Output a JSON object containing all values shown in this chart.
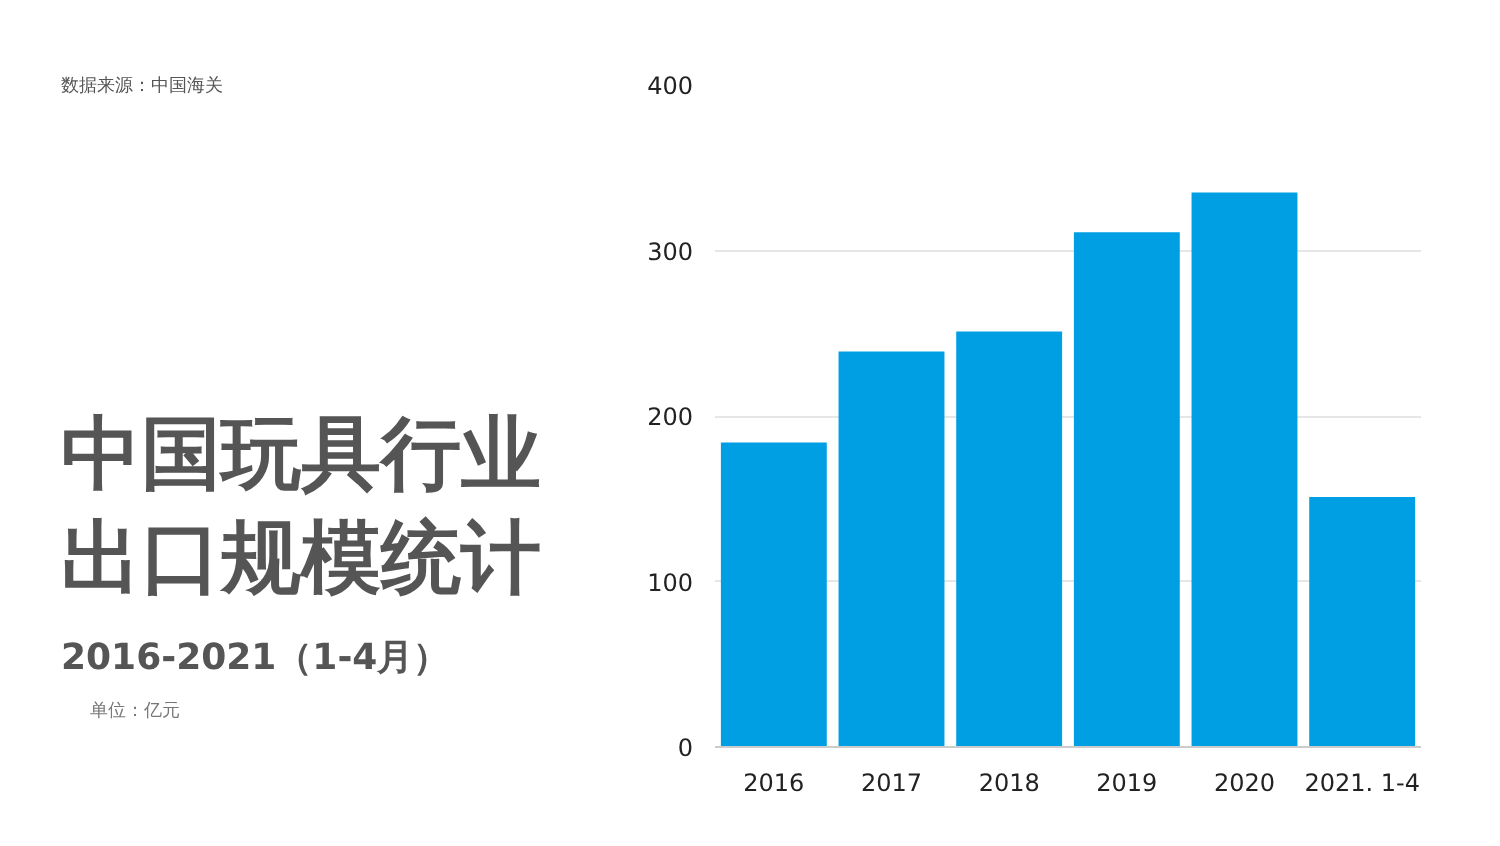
{
  "chart_data": {
    "type": "bar",
    "title": "中国玩具行业出口规模统计",
    "subtitle": "2016-2021（1-4月）",
    "annotations": [
      "数据来源：中国海关"
    ],
    "categories": [
      "2016",
      "2017",
      "2018",
      "2019",
      "2020",
      "2021. 1-4"
    ],
    "series": [
      {
        "name": "单位：亿元",
        "color": "#009fe3",
        "values": [
          184,
          239,
          251,
          311,
          335,
          151
        ]
      }
    ],
    "ylim": [
      0,
      400
    ],
    "yticks": [
      0,
      100,
      200,
      300,
      400
    ],
    "grid": "y",
    "legend": "left"
  }
}
